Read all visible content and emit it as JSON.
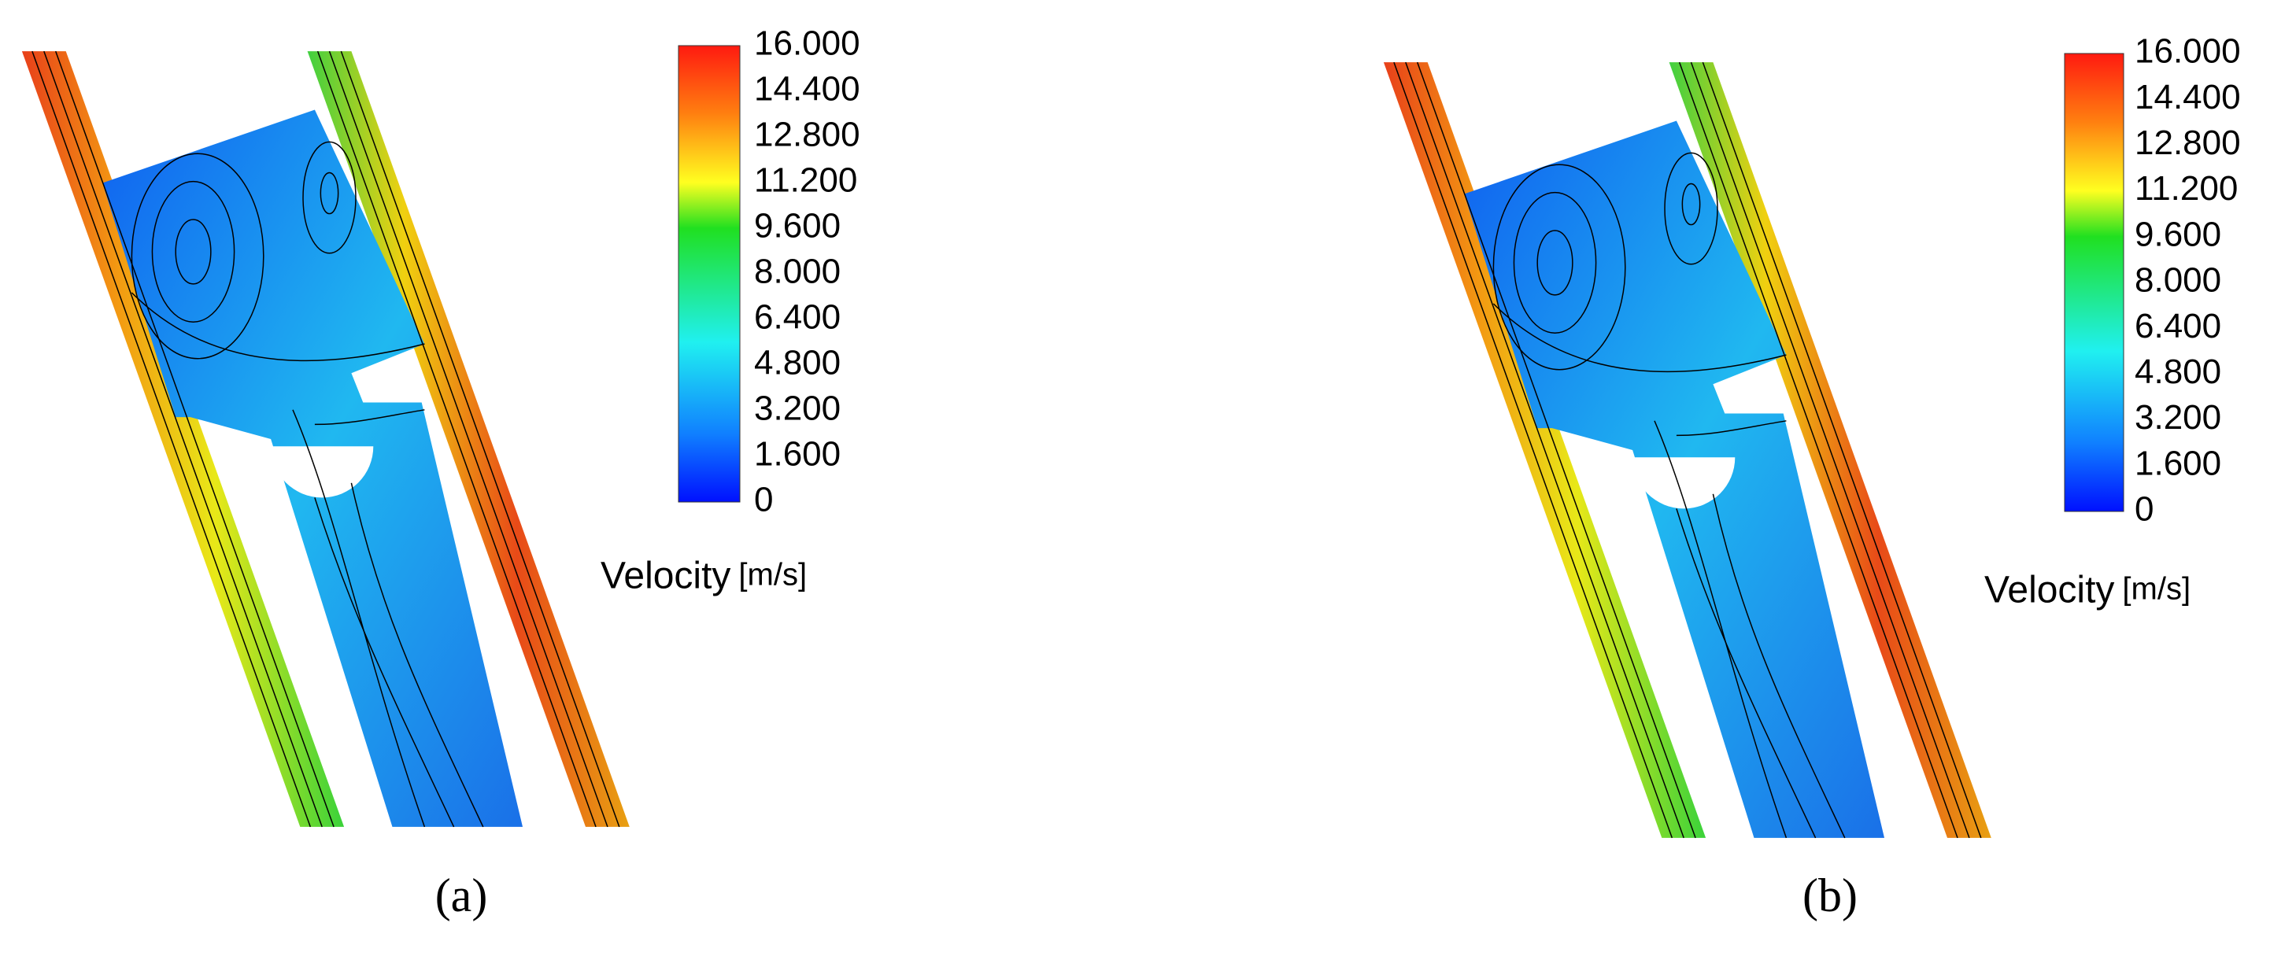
{
  "panels": [
    {
      "label": "(a)",
      "colorbar": {
        "ticks": [
          "16.000",
          "14.400",
          "12.800",
          "11.200",
          "9.600",
          "8.000",
          "6.400",
          "4.800",
          "3.200",
          "1.600",
          "0"
        ],
        "quantity": "Velocity",
        "unit": "[m/s]"
      }
    },
    {
      "label": "(b)",
      "colorbar": {
        "ticks": [
          "16.000",
          "14.400",
          "12.800",
          "11.200",
          "9.600",
          "8.000",
          "6.400",
          "4.800",
          "3.200",
          "1.600",
          "0"
        ],
        "quantity": "Velocity",
        "unit": "[m/s]"
      }
    }
  ]
}
